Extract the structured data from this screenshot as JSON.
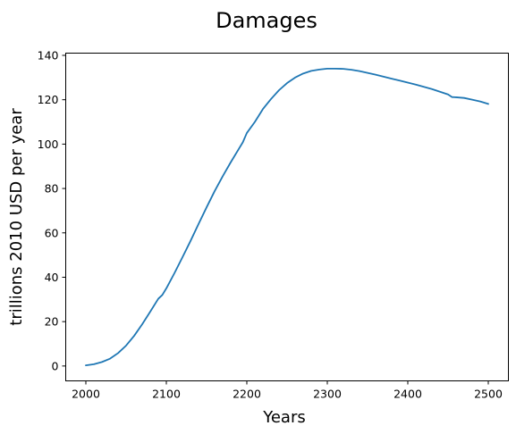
{
  "chart_data": {
    "type": "line",
    "title": "Damages",
    "xlabel": "Years",
    "ylabel": "trillions 2010 USD per year",
    "xlim": [
      1975,
      2525
    ],
    "ylim": [
      -6.7,
      141
    ],
    "xticks": [
      2000,
      2100,
      2200,
      2300,
      2400,
      2500
    ],
    "yticks": [
      0,
      20,
      40,
      60,
      80,
      100,
      120,
      140
    ],
    "grid": false,
    "legend": "none",
    "line_color": "#1f77b4",
    "series": [
      {
        "x": [
          2000,
          2010,
          2020,
          2030,
          2040,
          2050,
          2060,
          2070,
          2080,
          2090,
          2095,
          2100,
          2110,
          2120,
          2130,
          2140,
          2150,
          2160,
          2170,
          2180,
          2190,
          2195,
          2200,
          2210,
          2220,
          2230,
          2240,
          2250,
          2260,
          2270,
          2280,
          2290,
          2300,
          2310,
          2320,
          2330,
          2340,
          2350,
          2360,
          2370,
          2380,
          2390,
          2400,
          2410,
          2420,
          2430,
          2440,
          2450,
          2455,
          2460,
          2470,
          2480,
          2490,
          2500
        ],
        "values": [
          0.3,
          0.8,
          1.8,
          3.3,
          5.8,
          9.2,
          13.6,
          18.8,
          24.5,
          30.3,
          32.0,
          35.0,
          41.8,
          49.0,
          56.3,
          64.0,
          71.5,
          78.8,
          85.5,
          91.8,
          97.8,
          100.8,
          105.0,
          110.0,
          115.8,
          120.3,
          124.3,
          127.5,
          130.0,
          131.8,
          133.0,
          133.6,
          134.0,
          134.0,
          133.9,
          133.5,
          132.9,
          132.1,
          131.3,
          130.4,
          129.5,
          128.6,
          127.7,
          126.8,
          125.8,
          124.8,
          123.6,
          122.4,
          121.2,
          121.1,
          120.8,
          120.0,
          119.2,
          118.1
        ]
      }
    ]
  }
}
